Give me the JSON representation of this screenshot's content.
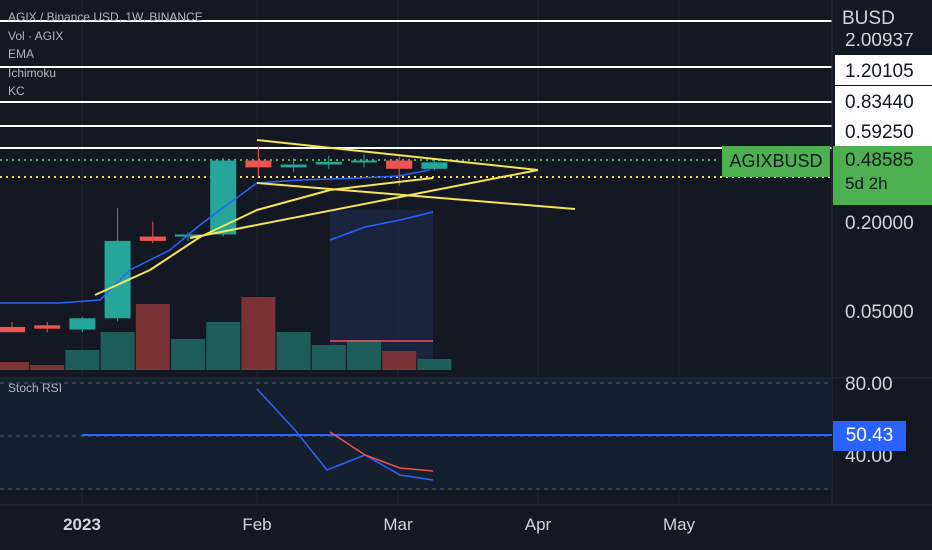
{
  "header": {
    "title": "AGIX / Binance USD, 1W, BINANCE",
    "indicators": [
      "Vol · AGIX",
      "EMA",
      "Ichimoku",
      "KC"
    ]
  },
  "price_axis": {
    "currency": "BUSD",
    "labels": [
      "2.00937",
      "1.20105",
      "0.83440",
      "0.59250",
      "0.48585",
      "0.20000",
      "0.05000"
    ],
    "current_price": "0.48585",
    "countdown": "5d 2h",
    "symbol_tag": "AGIXBUSD"
  },
  "time_axis": {
    "labels": [
      "2023",
      "Feb",
      "Mar",
      "Apr",
      "May"
    ]
  },
  "oscillator": {
    "name": "Stoch RSI",
    "labels": [
      "80.00",
      "40.00"
    ],
    "current_value": "50.43"
  },
  "colors": {
    "up": "#26a69a",
    "down": "#ef5350",
    "background": "#141822",
    "trendline": "#f5e35a",
    "ema": "#2962ff",
    "tag_green": "#4caf50"
  },
  "chart_data": {
    "type": "candlestick",
    "x_unit": "week",
    "y_scale": "log",
    "candles": [
      {
        "o": 0.0385,
        "h": 0.0415,
        "l": 0.036,
        "c": 0.0355,
        "dir": "down"
      },
      {
        "o": 0.0375,
        "h": 0.0415,
        "l": 0.0355,
        "c": 0.0395,
        "dir": "down"
      },
      {
        "o": 0.037,
        "h": 0.045,
        "l": 0.0355,
        "c": 0.044,
        "dir": "up"
      },
      {
        "o": 0.044,
        "h": 0.24,
        "l": 0.042,
        "c": 0.145,
        "dir": "up"
      },
      {
        "o": 0.145,
        "h": 0.195,
        "l": 0.14,
        "c": 0.155,
        "dir": "down"
      },
      {
        "o": 0.155,
        "h": 0.165,
        "l": 0.145,
        "c": 0.16,
        "dir": "up"
      },
      {
        "o": 0.16,
        "h": 0.52,
        "l": 0.155,
        "c": 0.5,
        "dir": "up"
      },
      {
        "o": 0.5,
        "h": 0.62,
        "l": 0.39,
        "c": 0.45,
        "dir": "down"
      },
      {
        "o": 0.45,
        "h": 0.52,
        "l": 0.42,
        "c": 0.47,
        "dir": "up"
      },
      {
        "o": 0.47,
        "h": 0.54,
        "l": 0.44,
        "c": 0.49,
        "dir": "up"
      },
      {
        "o": 0.49,
        "h": 0.55,
        "l": 0.45,
        "c": 0.5,
        "dir": "up"
      },
      {
        "o": 0.5,
        "h": 0.53,
        "l": 0.34,
        "c": 0.44,
        "dir": "down"
      },
      {
        "o": 0.44,
        "h": 0.51,
        "l": 0.43,
        "c": 0.486,
        "dir": "up"
      }
    ],
    "volume": [
      0.08,
      0.05,
      0.2,
      0.38,
      0.66,
      0.31,
      0.48,
      0.73,
      0.38,
      0.25,
      0.3,
      0.19,
      0.11
    ]
  }
}
